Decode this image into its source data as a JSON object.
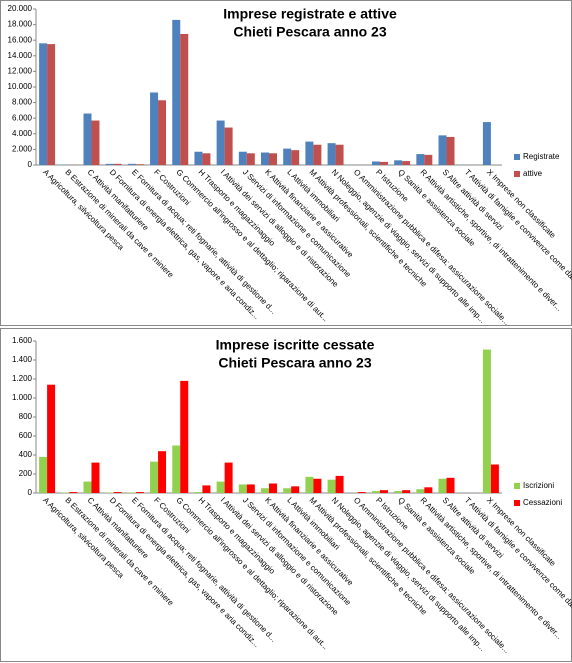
{
  "chart_data": [
    {
      "type": "bar",
      "title": "Imprese registrate e attive",
      "subtitle": "Chieti Pescara anno 23",
      "categories": [
        "A Agricoltura, silvicoltura pesca",
        "B Estrazione di minerali da cave e miniere",
        "C Attività manifatturiere",
        "D Fornitura di energia elettrica, gas, vapore e aria condiz...",
        "E Fornitura di acqua; reti fognarie, attività di gestione d...",
        "F Costruzioni",
        "G Commercio all'ingrosso e al dettaglio; riparazione di aut...",
        "H Trasporto e magazzinaggio",
        "I Attività dei servizi di alloggio e di ristorazione",
        "J Servizi di informazione e comunicazione",
        "K Attività finanziarie e assicurative",
        "L Attività immobiliari",
        "M Attività professionali, scientifiche e tecniche",
        "N Noleggio, agenzie di viaggio, servizi di supporto alle imp...",
        "O Amministrazione pubblica e difesa; assicurazione sociale...",
        "P Istruzione",
        "Q Sanità e assistenza sociale",
        "R Attività artistiche, sportive, di intrattenimento e diver...",
        "S Altre attività di servizi",
        "T Attività di famiglie e convivenze come datori di lavoro p...",
        "X Imprese non classificate"
      ],
      "series": [
        {
          "name": "Registrate",
          "color": "#4f81bd",
          "values": [
            15600,
            50,
            6600,
            150,
            150,
            9300,
            18600,
            1700,
            5700,
            1700,
            1600,
            2100,
            3000,
            2800,
            10,
            450,
            600,
            1400,
            3800,
            10,
            5500
          ]
        },
        {
          "name": "attive",
          "color": "#c0504d",
          "values": [
            15500,
            30,
            5700,
            150,
            100,
            8300,
            16800,
            1500,
            4800,
            1500,
            1500,
            1900,
            2600,
            2600,
            5,
            400,
            500,
            1300,
            3600,
            5,
            0
          ]
        }
      ],
      "ylim": [
        0,
        20000
      ],
      "yticks": [
        0,
        {
          "value": 2000,
          "label": "2.000"
        },
        {
          "value": 4000,
          "label": "4.000"
        },
        {
          "value": 6000,
          "label": "6.000"
        },
        {
          "value": 8000,
          "label": "8.000"
        },
        {
          "value": 10000,
          "label": "10.000"
        },
        {
          "value": 12000,
          "label": "12.000"
        },
        {
          "value": 14000,
          "label": "14.000"
        },
        {
          "value": 16000,
          "label": "16.000"
        },
        {
          "value": 18000,
          "label": "18.000"
        },
        {
          "value": 20000,
          "label": "20.000"
        }
      ],
      "grid": false,
      "legend": "right"
    },
    {
      "type": "bar",
      "title": "Imprese iscritte cessate",
      "subtitle": "Chieti Pescara anno 23",
      "categories": [
        "A Agricoltura, silvicoltura pesca",
        "B Estrazione di minerali da cave e miniere",
        "C Attività manifatturiere",
        "D Fornitura di energia elettrica, gas, vapore e aria condiz...",
        "E Fornitura di acqua; reti fognarie, attività di gestione d...",
        "F Costruzioni",
        "G Commercio all'ingrosso e al dettaglio; riparazione di aut...",
        "H Trasporto e magazzinaggio",
        "I Attività dei servizi di alloggio e di ristorazione",
        "J Servizi di informazione e comunicazione",
        "K Attività finanziarie e assicurative",
        "L Attività immobiliari",
        "M Attività professionali, scientifiche e tecniche",
        "N Noleggio, agenzie di viaggio, servizi di supporto alle imp...",
        "O Amministrazione pubblica e difesa; assicurazione sociale...",
        "P Istruzione",
        "Q Sanità e assistenza sociale",
        "R Attività artistiche, sportive, di intrattenimento e diver...",
        "S Altre attività di servizi",
        "T Attività di famiglie e convivenze come datori di lavoro p...",
        "X Imprese non classificate"
      ],
      "series": [
        {
          "name": "Iscrizioni",
          "color": "#92d050",
          "values": [
            380,
            5,
            120,
            5,
            5,
            330,
            500,
            10,
            120,
            90,
            50,
            50,
            170,
            140,
            0,
            20,
            20,
            40,
            150,
            0,
            1510
          ]
        },
        {
          "name": "Cessazioni",
          "color": "#ff0000",
          "values": [
            1140,
            10,
            320,
            10,
            10,
            440,
            1180,
            80,
            320,
            90,
            100,
            70,
            150,
            180,
            10,
            30,
            30,
            60,
            160,
            0,
            300
          ]
        }
      ],
      "ylim": [
        0,
        1600
      ],
      "yticks": [
        0,
        200,
        400,
        600,
        800,
        {
          "value": 1000,
          "label": "1.000"
        },
        {
          "value": 1200,
          "label": "1.200"
        },
        {
          "value": 1400,
          "label": "1.400"
        },
        {
          "value": 1600,
          "label": "1.600"
        }
      ],
      "grid": false,
      "legend": "right"
    }
  ]
}
